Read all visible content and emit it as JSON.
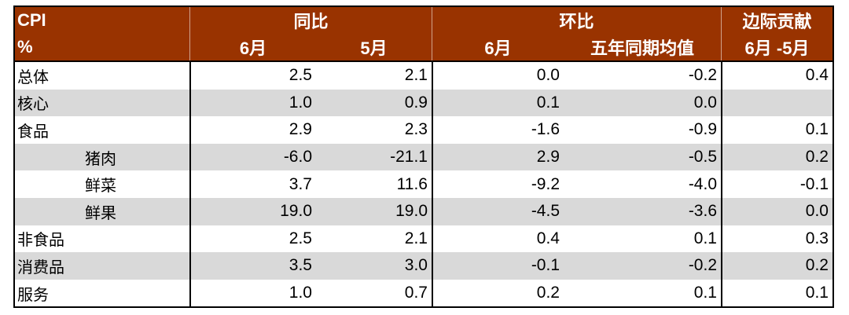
{
  "colors": {
    "header_background": "#993300",
    "header_text": "#ffffff",
    "stripe_background": "#d9d9d9",
    "rule": "#000000"
  },
  "chart_data": {
    "type": "table",
    "corner": {
      "top": "CPI",
      "bottom": "%"
    },
    "column_groups": [
      {
        "label": "同比",
        "columns": [
          "6月",
          "5月"
        ]
      },
      {
        "label": "环比",
        "columns": [
          "6月",
          "五年同期均值"
        ]
      },
      {
        "label": "边际贡献",
        "columns": [
          "6月 -5月"
        ]
      }
    ],
    "rows": [
      {
        "label": "总体",
        "values": [
          2.5,
          2.1,
          0.0,
          -0.2,
          0.4
        ]
      },
      {
        "label": "核心",
        "values": [
          1.0,
          0.9,
          0.1,
          0.0,
          null
        ]
      },
      {
        "label": "食品",
        "values": [
          2.9,
          2.3,
          -1.6,
          -0.9,
          0.1
        ],
        "sub_items": [
          {
            "label": "猪肉",
            "values": [
              -6.0,
              -21.1,
              2.9,
              -0.5,
              0.2
            ]
          },
          {
            "label": "鲜菜",
            "values": [
              3.7,
              11.6,
              -9.2,
              -4.0,
              -0.1
            ]
          },
          {
            "label": "鲜果",
            "values": [
              19.0,
              19.0,
              -4.5,
              -3.6,
              0.0
            ]
          }
        ]
      },
      {
        "label": "非食品",
        "values": [
          2.5,
          2.1,
          0.4,
          0.1,
          0.3
        ]
      },
      {
        "label": "消费品",
        "values": [
          3.5,
          3.0,
          -0.1,
          -0.2,
          0.2
        ]
      },
      {
        "label": "服务",
        "values": [
          1.0,
          0.7,
          0.2,
          0.1,
          0.1
        ]
      }
    ]
  }
}
